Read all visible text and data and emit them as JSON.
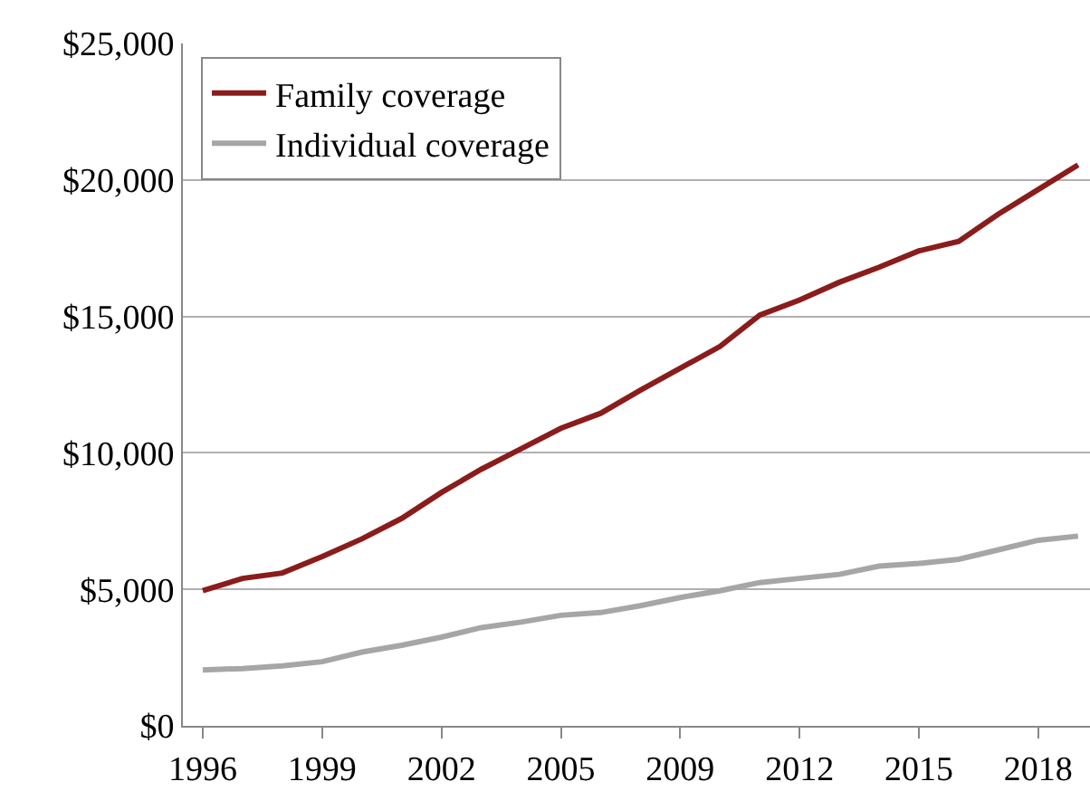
{
  "chart_data": {
    "type": "line",
    "categories": [
      "1996",
      null,
      null,
      "1999",
      null,
      null,
      "2002",
      null,
      null,
      "2005",
      null,
      null,
      "2009",
      null,
      null,
      "2012",
      null,
      null,
      "2015",
      null,
      null,
      "2018",
      null
    ],
    "series": [
      {
        "name": "Family coverage",
        "color": "#8b1c1c",
        "values": [
          4950,
          5400,
          5600,
          6200,
          6850,
          7600,
          8550,
          9400,
          10150,
          10900,
          11450,
          12300,
          13100,
          13900,
          15050,
          15600,
          16250,
          16800,
          17400,
          17750,
          18750,
          19650,
          20550
        ]
      },
      {
        "name": "Individual coverage",
        "color": "#a6a6a6",
        "values": [
          2050,
          2100,
          2200,
          2350,
          2700,
          2950,
          3250,
          3600,
          3800,
          4050,
          4150,
          4400,
          4700,
          4950,
          5250,
          5400,
          5550,
          5850,
          5950,
          6100,
          6450,
          6800,
          6950
        ]
      }
    ],
    "ylim": [
      0,
      25000
    ],
    "yticks": [
      {
        "value": 0,
        "label": "$0"
      },
      {
        "value": 5000,
        "label": "$5,000"
      },
      {
        "value": 10000,
        "label": "$10,000"
      },
      {
        "value": 15000,
        "label": "$15,000"
      },
      {
        "value": 20000,
        "label": "$20,000"
      },
      {
        "value": 25000,
        "label": "$25,000"
      }
    ],
    "grid": "y",
    "legend": "top left",
    "marker": "none",
    "line_style": "solid"
  }
}
